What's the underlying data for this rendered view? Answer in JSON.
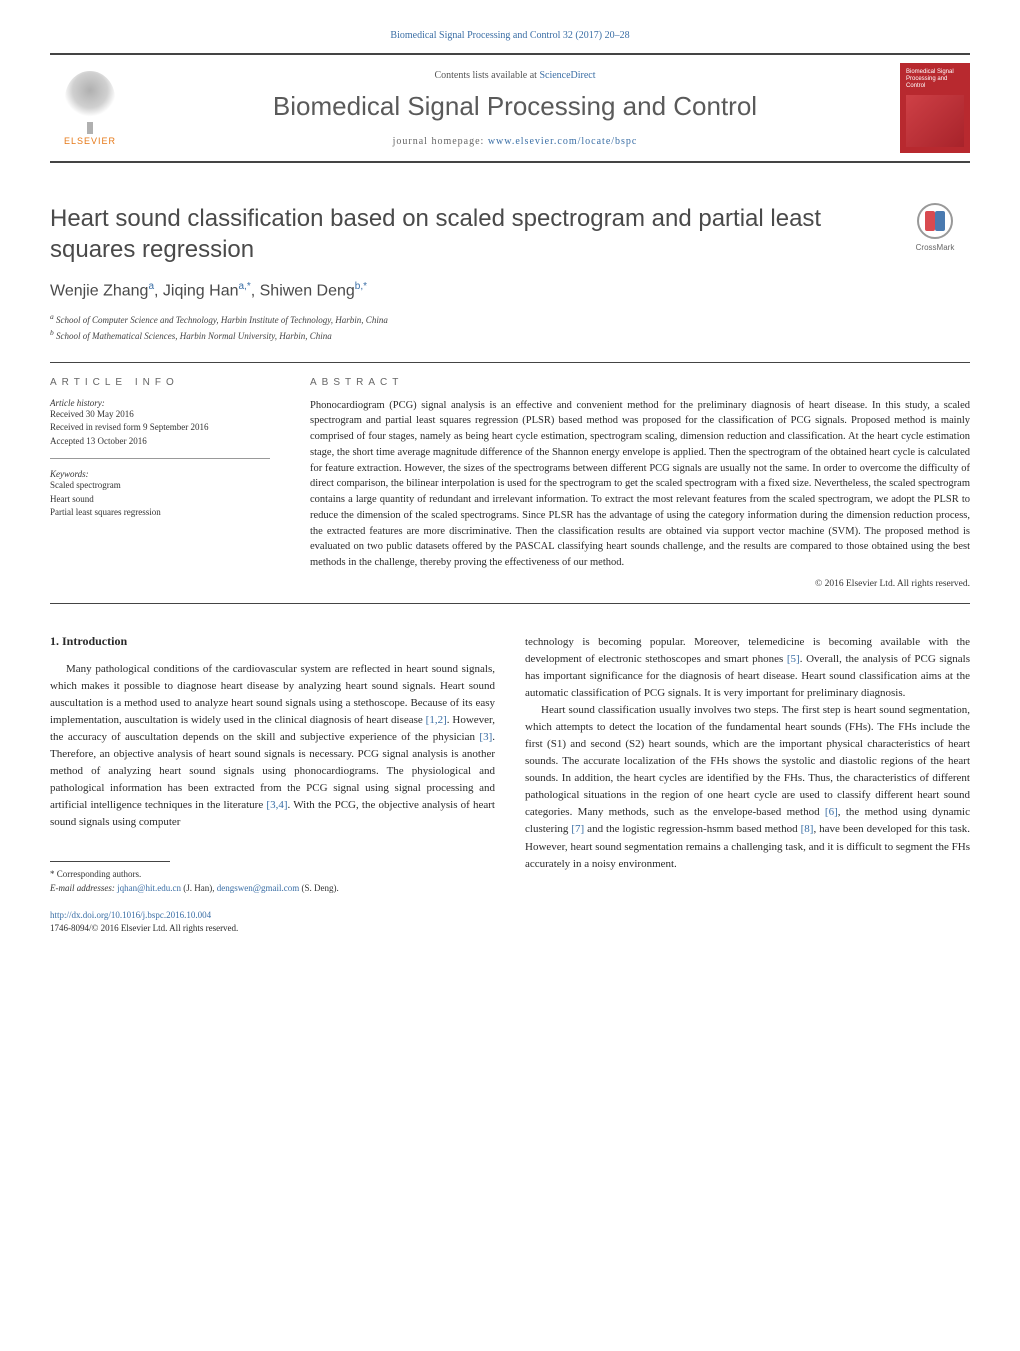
{
  "journal_ref": "Biomedical Signal Processing and Control 32 (2017) 20–28",
  "masthead": {
    "elsevier": "ELSEVIER",
    "contents_prefix": "Contents lists available at ",
    "contents_link": "ScienceDirect",
    "journal_name": "Biomedical Signal Processing and Control",
    "homepage_prefix": "journal homepage: ",
    "homepage_link": "www.elsevier.com/locate/bspc",
    "cover_title": "Biomedical Signal Processing and Control"
  },
  "crossmark": "CrossMark",
  "title": "Heart sound classification based on scaled spectrogram and partial least squares regression",
  "authors_html": "Wenjie Zhang<sup>a</sup>, Jiqing Han<sup>a,*</sup>, Shiwen Deng<sup>b,*</sup>",
  "affiliations": {
    "a": "School of Computer Science and Technology, Harbin Institute of Technology, Harbin, China",
    "b": "School of Mathematical Sciences, Harbin Normal University, Harbin, China"
  },
  "info": {
    "heading": "ARTICLE INFO",
    "history_label": "Article history:",
    "history": [
      "Received 30 May 2016",
      "Received in revised form 9 September 2016",
      "Accepted 13 October 2016"
    ],
    "keywords_label": "Keywords:",
    "keywords": [
      "Scaled spectrogram",
      "Heart sound",
      "Partial least squares regression"
    ]
  },
  "abstract": {
    "heading": "ABSTRACT",
    "text": "Phonocardiogram (PCG) signal analysis is an effective and convenient method for the preliminary diagnosis of heart disease. In this study, a scaled spectrogram and partial least squares regression (PLSR) based method was proposed for the classification of PCG signals. Proposed method is mainly comprised of four stages, namely as being heart cycle estimation, spectrogram scaling, dimension reduction and classification. At the heart cycle estimation stage, the short time average magnitude difference of the Shannon energy envelope is applied. Then the spectrogram of the obtained heart cycle is calculated for feature extraction. However, the sizes of the spectrograms between different PCG signals are usually not the same. In order to overcome the difficulty of direct comparison, the bilinear interpolation is used for the spectrogram to get the scaled spectrogram with a fixed size. Nevertheless, the scaled spectrogram contains a large quantity of redundant and irrelevant information. To extract the most relevant features from the scaled spectrogram, we adopt the PLSR to reduce the dimension of the scaled spectrograms. Since PLSR has the advantage of using the category information during the dimension reduction process, the extracted features are more discriminative. Then the classification results are obtained via support vector machine (SVM). The proposed method is evaluated on two public datasets offered by the PASCAL classifying heart sounds challenge, and the results are compared to those obtained using the best methods in the challenge, thereby proving the effectiveness of our method.",
    "copyright": "© 2016 Elsevier Ltd. All rights reserved."
  },
  "body": {
    "section1_heading": "1. Introduction",
    "col1_p1": "Many pathological conditions of the cardiovascular system are reflected in heart sound signals, which makes it possible to diagnose heart disease by analyzing heart sound signals. Heart sound auscultation is a method used to analyze heart sound signals using a stethoscope. Because of its easy implementation, auscultation is widely used in the clinical diagnosis of heart disease [1,2]. However, the accuracy of auscultation depends on the skill and subjective experience of the physician [3]. Therefore, an objective analysis of heart sound signals is necessary. PCG signal analysis is another method of analyzing heart sound signals using phonocardiograms. The physiological and pathological information has been extracted from the PCG signal using signal processing and artificial intelligence techniques in the literature [3,4]. With the PCG, the objective analysis of heart sound signals using computer",
    "col2_p1": "technology is becoming popular. Moreover, telemedicine is becoming available with the development of electronic stethoscopes and smart phones [5]. Overall, the analysis of PCG signals has important significance for the diagnosis of heart disease. Heart sound classification aims at the automatic classification of PCG signals. It is very important for preliminary diagnosis.",
    "col2_p2": "Heart sound classification usually involves two steps. The first step is heart sound segmentation, which attempts to detect the location of the fundamental heart sounds (FHs). The FHs include the first (S1) and second (S2) heart sounds, which are the important physical characteristics of heart sounds. The accurate localization of the FHs shows the systolic and diastolic regions of the heart sounds. In addition, the heart cycles are identified by the FHs. Thus, the characteristics of different pathological situations in the region of one heart cycle are used to classify different heart sound categories. Many methods, such as the envelope-based method [6], the method using dynamic clustering [7] and the logistic regression-hsmm based method [8], have been developed for this task. However, heart sound segmentation remains a challenging task, and it is difficult to segment the FHs accurately in a noisy environment."
  },
  "footnote": {
    "corresponding": "* Corresponding authors.",
    "email_label": "E-mail addresses:",
    "email1": "jqhan@hit.edu.cn",
    "email1_name": "(J. Han),",
    "email2": "dengswen@gmail.com",
    "email2_name": "(S. Deng)."
  },
  "doi": {
    "link": "http://dx.doi.org/10.1016/j.bspc.2016.10.004",
    "issn_copyright": "1746-8094/© 2016 Elsevier Ltd. All rights reserved."
  },
  "colors": {
    "link": "#3a6ea5",
    "elsevier_orange": "#e67817",
    "cover_red": "#b8292f",
    "text": "#2a2a2a",
    "rule": "#444444"
  }
}
